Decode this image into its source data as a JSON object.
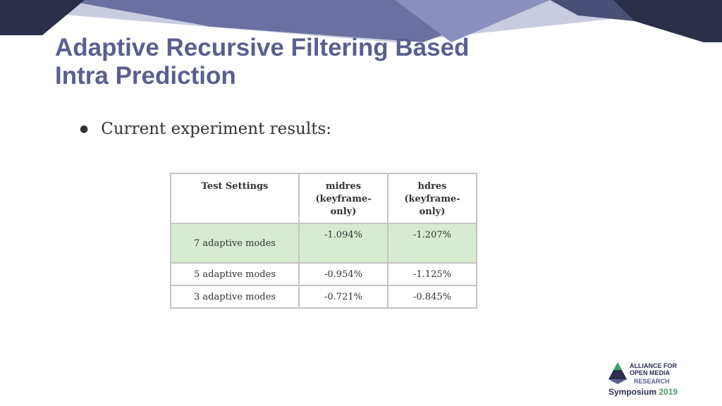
{
  "slide": {
    "title_line1": "Adaptive Recursive Filtering Based",
    "title_line2": "Intra Prediction",
    "bullet_text": "Current experiment results:"
  },
  "table": {
    "headers": [
      {
        "line1": "Test Settings",
        "line2": "",
        "line3": ""
      },
      {
        "line1": "midres",
        "line2": "(keyframe-",
        "line3": "only)"
      },
      {
        "line1": "hdres",
        "line2": "(keyframe-",
        "line3": "only)"
      }
    ],
    "rows": [
      {
        "setting": "7 adaptive modes",
        "midres": "-1.094%",
        "hdres": "-1.207%"
      },
      {
        "setting": "5 adaptive modes",
        "midres": "-0.954%",
        "hdres": "-1.125%"
      },
      {
        "setting": "3 adaptive modes",
        "midres": "-0.721%",
        "hdres": "-0.845%"
      }
    ],
    "highlight_color": "#d9ead3"
  },
  "logo": {
    "line1": "ALLIANCE FOR",
    "line2": "OPEN MEDIA",
    "line3": "RESEARCH",
    "line4": "Symposium",
    "year": "2019"
  },
  "colors": {
    "title": "#5a5f8f",
    "banner_dark": "#2b2f4a",
    "banner_mid": "#5a5f8f",
    "banner_light": "#a9adc9"
  }
}
